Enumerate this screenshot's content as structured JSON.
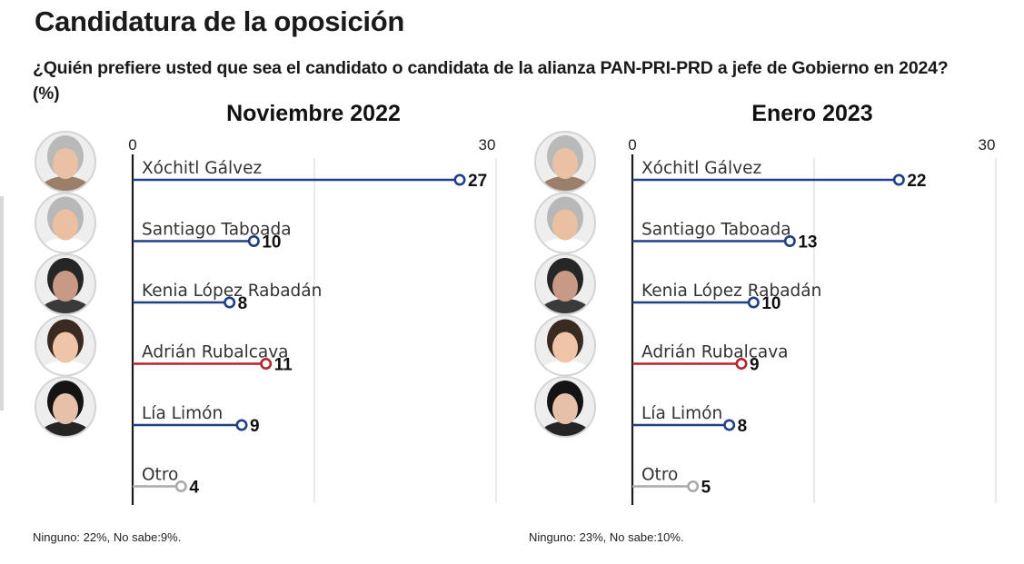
{
  "header": {
    "title": "Candidatura de la oposición",
    "subtitle": "¿Quién prefiere usted que sea el candidato o candidata de la alianza PAN-PRI-PRD a jefe de Gobierno en 2024?",
    "unit": "(%)"
  },
  "colors": {
    "blue": "#1f3f86",
    "red": "#b3262e",
    "gray": "#aaaaaa",
    "axis": "#1a1a1a",
    "grid": "#d6d6d6"
  },
  "avatars": [
    {
      "icon": "avatar-xochitl-galvez",
      "skin": "#e9c2a6",
      "hair": "#b9b9b9",
      "shirt": "#9b7f6a"
    },
    {
      "icon": "avatar-santiago-taboada",
      "skin": "#eac0a0",
      "hair": "#b8b8b8",
      "shirt": "#ffffff"
    },
    {
      "icon": "avatar-kenia-lopez-rabadan",
      "skin": "#c89a86",
      "hair": "#262626",
      "shirt": "#3a3a3a"
    },
    {
      "icon": "avatar-adrian-rubalcava",
      "skin": "#efc4a8",
      "hair": "#3a2a22",
      "shirt": "#ffffff"
    },
    {
      "icon": "avatar-lia-limon",
      "skin": "#e6c0a8",
      "hair": "#141414",
      "shirt": "#252525"
    }
  ],
  "chart_data": [
    {
      "type": "dot",
      "title": "Noviembre  2022",
      "xlim": [
        0,
        30
      ],
      "ticks": [
        "0",
        "30"
      ],
      "categories": [
        "Xóchitl Gálvez",
        "Santiago Taboada",
        "Kenia López Rabadán",
        "Adrián Rubalcava",
        "Lía Limón",
        "Otro"
      ],
      "values": [
        27,
        10,
        8,
        11,
        9,
        4
      ],
      "value_labels": [
        "27",
        "10",
        "8",
        "11",
        "9",
        "4"
      ],
      "colors": [
        "blue",
        "blue",
        "blue",
        "red",
        "blue",
        "gray"
      ],
      "note": "Ninguno: 22%, No sabe:9%."
    },
    {
      "type": "dot",
      "title": "Enero 2023",
      "xlim": [
        0,
        30
      ],
      "ticks": [
        "0",
        "30"
      ],
      "categories": [
        "Xóchitl Gálvez",
        "Santiago Taboada",
        "Kenia López Rabadán",
        "Adrián Rubalcava",
        "Lía Limón",
        "Otro"
      ],
      "values": [
        22,
        13,
        10,
        9,
        8,
        5
      ],
      "value_labels": [
        "22",
        "13",
        "10",
        "9",
        "8",
        "5"
      ],
      "colors": [
        "blue",
        "blue",
        "blue",
        "red",
        "blue",
        "gray"
      ],
      "note": "Ninguno: 23%, No sabe:10%."
    }
  ]
}
